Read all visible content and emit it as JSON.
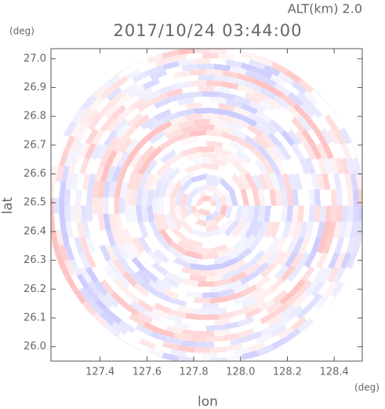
{
  "chart_data": {
    "type": "radar-ppi",
    "title": "2017/10/24 03:44:00",
    "subtitle": "ALT(km) 2.0",
    "x_label": "lon",
    "y_label": "lat",
    "x_unit": "(deg)",
    "y_unit": "(deg)",
    "xlim": [
      127.19,
      128.52
    ],
    "ylim": [
      25.95,
      27.035
    ],
    "xticks": [
      127.4,
      127.6,
      127.8,
      {
        "value": 128.0,
        "label": "128.0"
      },
      128.2,
      128.4
    ],
    "yticks": [
      {
        "value": 26.0,
        "label": "26.0"
      },
      26.1,
      26.2,
      26.3,
      26.4,
      26.5,
      26.6,
      26.7,
      26.8,
      26.9,
      {
        "value": 27.0,
        "label": "27.0"
      }
    ]
  }
}
